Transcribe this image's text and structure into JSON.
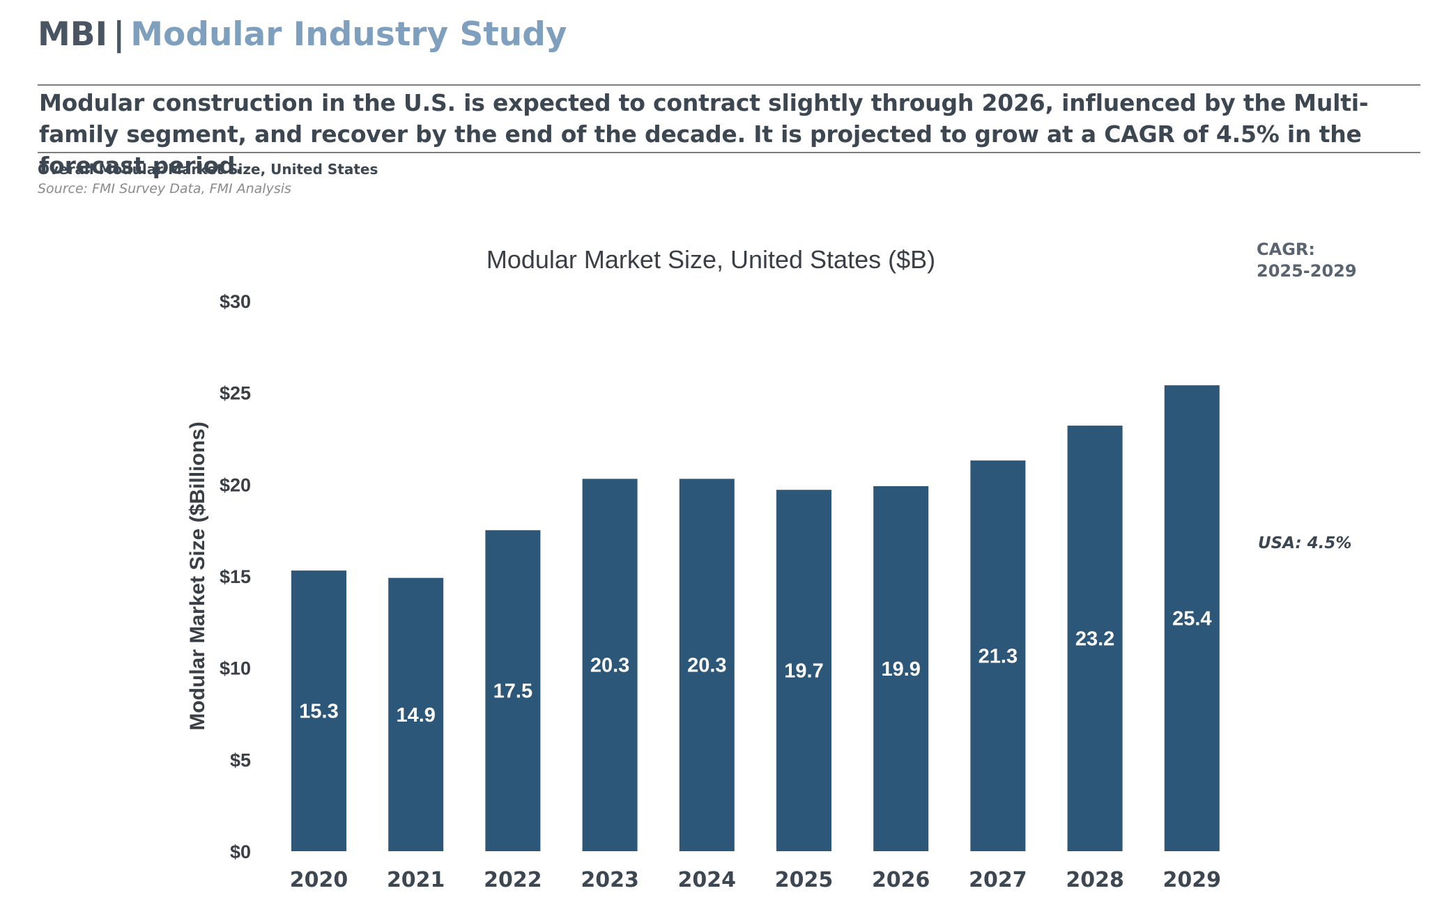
{
  "header": {
    "brand": "MBI",
    "separator": "|",
    "study_title": "Modular Industry Study"
  },
  "headline": "Modular construction in the U.S. is expected to contract slightly through 2026, influenced by the Multi-family segment, and recover by the end of the decade. It is projected to grow at a CAGR of 4.5% in the forecast period.",
  "figure": {
    "subtitle": "Overall Modular Market Size, United States",
    "source": "Source: FMI Survey Data, FMI Analysis"
  },
  "cagr": {
    "label_line1": "CAGR:",
    "label_line2": "2025-2029",
    "value": "USA: 4.5%"
  },
  "colors": {
    "bar": "#2d5779",
    "bar_label": "#ffffff",
    "header_accent": "#7f9fbf"
  },
  "chart_data": {
    "type": "bar",
    "title": "Modular Market Size, United States ($B)",
    "xlabel": "",
    "ylabel": "Modular Market Size ($Billions)",
    "categories": [
      "2020",
      "2021",
      "2022",
      "2023",
      "2024",
      "2025",
      "2026",
      "2027",
      "2028",
      "2029"
    ],
    "values": [
      15.3,
      14.9,
      17.5,
      20.3,
      20.3,
      19.7,
      19.9,
      21.3,
      23.2,
      25.4
    ],
    "value_labels": [
      "15.3",
      "14.9",
      "17.5",
      "20.3",
      "20.3",
      "19.7",
      "19.9",
      "21.3",
      "23.2",
      "25.4"
    ],
    "ylim": [
      0,
      30
    ],
    "yticks": [
      0,
      5,
      10,
      15,
      20,
      25,
      30
    ],
    "ytick_labels": [
      "$0",
      "$5",
      "$10",
      "$15",
      "$20",
      "$25",
      "$30"
    ],
    "grid": false,
    "legend": "none"
  }
}
